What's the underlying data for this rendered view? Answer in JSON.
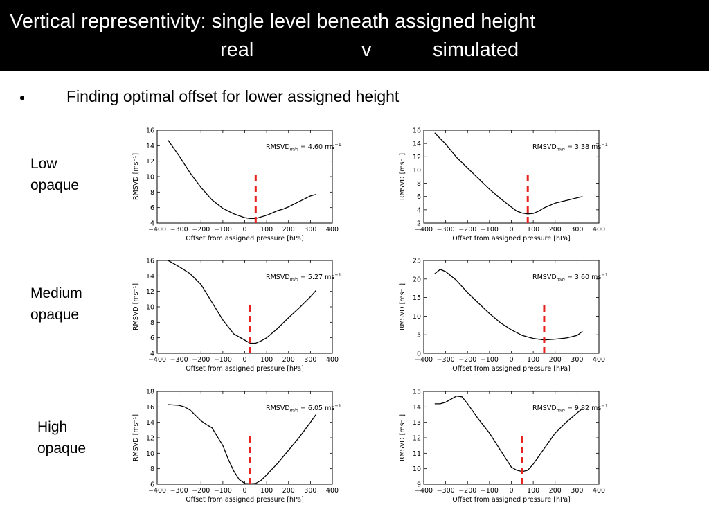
{
  "slide": {
    "title_line1": "Vertical representivity:  single level beneath assigned height",
    "title_line2": [
      "real",
      "v",
      "simulated"
    ],
    "bullet_symbol": "•",
    "bullet_text": "Finding optimal offset for lower assigned height",
    "row_labels": [
      [
        "Low",
        "opaque"
      ],
      [
        "Medium",
        "opaque"
      ],
      [
        "High",
        "opaque"
      ]
    ]
  },
  "chart_data": [
    {
      "type": "line",
      "row": "Low opaque",
      "column": "real",
      "xlabel": "Offset from assigned pressure [hPa]",
      "ylabel": "RMSVD [ms⁻¹]",
      "xlim": [
        -400,
        400
      ],
      "ylim": [
        4,
        16
      ],
      "xticks": [
        -400,
        -300,
        -200,
        -100,
        0,
        100,
        200,
        300,
        400
      ],
      "yticks": [
        4,
        6,
        8,
        10,
        12,
        14,
        16
      ],
      "annotation_label": "RMSVD",
      "annotation_sub": "min",
      "annotation_value": "= 4.60 ms",
      "annotation_sup": "−1",
      "optimal_offset": 50,
      "x": [
        -350,
        -300,
        -250,
        -200,
        -150,
        -100,
        -50,
        0,
        25,
        50,
        75,
        100,
        125,
        150,
        175,
        200,
        250,
        300,
        325
      ],
      "y": [
        14.7,
        12.7,
        10.5,
        8.6,
        7.0,
        5.9,
        5.2,
        4.7,
        4.6,
        4.6,
        4.8,
        5.0,
        5.3,
        5.6,
        5.8,
        6.1,
        6.8,
        7.5,
        7.7
      ]
    },
    {
      "type": "line",
      "row": "Low opaque",
      "column": "simulated",
      "xlabel": "Offset from assigned pressure [hPa]",
      "ylabel": "RMSVD [ms⁻¹]",
      "xlim": [
        -400,
        400
      ],
      "ylim": [
        2,
        16
      ],
      "xticks": [
        -400,
        -300,
        -200,
        -100,
        0,
        100,
        200,
        300,
        400
      ],
      "yticks": [
        2,
        4,
        6,
        8,
        10,
        12,
        14,
        16
      ],
      "annotation_label": "RMSVD",
      "annotation_sub": "min",
      "annotation_value": "= 3.38 ms",
      "annotation_sup": "−1",
      "optimal_offset": 75,
      "x": [
        -350,
        -300,
        -250,
        -200,
        -150,
        -100,
        -50,
        0,
        25,
        50,
        75,
        100,
        125,
        150,
        200,
        250,
        300,
        325
      ],
      "y": [
        15.6,
        13.9,
        11.9,
        10.3,
        8.7,
        7.1,
        5.7,
        4.4,
        3.8,
        3.5,
        3.38,
        3.45,
        3.8,
        4.3,
        5.0,
        5.4,
        5.8,
        6.0
      ]
    },
    {
      "type": "line",
      "row": "Medium opaque",
      "column": "real",
      "xlabel": "Offset from assigned pressure [hPa]",
      "ylabel": "RMSVD [ms⁻¹]",
      "xlim": [
        -400,
        400
      ],
      "ylim": [
        4,
        16
      ],
      "xticks": [
        -400,
        -300,
        -200,
        -100,
        0,
        100,
        200,
        300,
        400
      ],
      "yticks": [
        4,
        6,
        8,
        10,
        12,
        14,
        16
      ],
      "annotation_label": "RMSVD",
      "annotation_sub": "min",
      "annotation_value": "= 5.27 ms",
      "annotation_sup": "−1",
      "optimal_offset": 25,
      "x": [
        -350,
        -300,
        -250,
        -200,
        -150,
        -100,
        -50,
        0,
        25,
        50,
        75,
        100,
        150,
        200,
        250,
        300,
        325
      ],
      "y": [
        16.0,
        15.2,
        14.3,
        12.9,
        10.6,
        8.3,
        6.5,
        5.7,
        5.3,
        5.3,
        5.6,
        6.0,
        7.2,
        8.6,
        9.9,
        11.3,
        12.1
      ]
    },
    {
      "type": "line",
      "row": "Medium opaque",
      "column": "simulated",
      "xlabel": "Offset from assigned pressure [hPa]",
      "ylabel": "RMSVD [ms⁻¹]",
      "xlim": [
        -400,
        400
      ],
      "ylim": [
        0,
        25
      ],
      "xticks": [
        -400,
        -300,
        -200,
        -100,
        0,
        100,
        200,
        300,
        400
      ],
      "yticks": [
        0,
        5,
        10,
        15,
        20,
        25
      ],
      "annotation_label": "RMSVD",
      "annotation_sub": "min",
      "annotation_value": "= 3.60 ms",
      "annotation_sup": "−1",
      "optimal_offset": 150,
      "x": [
        -350,
        -325,
        -300,
        -250,
        -200,
        -150,
        -100,
        -50,
        0,
        50,
        100,
        150,
        200,
        250,
        300,
        325
      ],
      "y": [
        21.4,
        22.6,
        22.0,
        19.6,
        16.3,
        13.5,
        10.7,
        8.2,
        6.3,
        4.8,
        4.0,
        3.6,
        3.8,
        4.1,
        4.8,
        5.9
      ]
    },
    {
      "type": "line",
      "row": "High opaque",
      "column": "real",
      "xlabel": "Offset from assigned pressure [hPa]",
      "ylabel": "RMSVD [ms⁻¹]",
      "xlim": [
        -400,
        400
      ],
      "ylim": [
        6,
        18
      ],
      "xticks": [
        -400,
        -300,
        -200,
        -100,
        0,
        100,
        200,
        300,
        400
      ],
      "yticks": [
        6,
        8,
        10,
        12,
        14,
        16,
        18
      ],
      "annotation_label": "RMSVD",
      "annotation_sub": "min",
      "annotation_value": "= 6.05 ms",
      "annotation_sup": "−1",
      "optimal_offset": 25,
      "x": [
        -350,
        -300,
        -275,
        -250,
        -200,
        -175,
        -150,
        -100,
        -75,
        -50,
        -25,
        0,
        25,
        50,
        75,
        100,
        150,
        200,
        250,
        300,
        325
      ],
      "y": [
        16.3,
        16.2,
        16.0,
        15.6,
        14.2,
        13.7,
        13.3,
        11.0,
        9.2,
        7.7,
        6.6,
        6.1,
        6.05,
        6.1,
        6.5,
        7.2,
        8.7,
        10.4,
        12.1,
        14.0,
        15.0
      ]
    },
    {
      "type": "line",
      "row": "High opaque",
      "column": "simulated",
      "xlabel": "Offset from assigned pressure [hPa]",
      "ylabel": "RMSVD [ms⁻¹]",
      "xlim": [
        -400,
        400
      ],
      "ylim": [
        9,
        15
      ],
      "xticks": [
        -400,
        -300,
        -200,
        -100,
        0,
        100,
        200,
        300,
        400
      ],
      "yticks": [
        9,
        10,
        11,
        12,
        13,
        14,
        15
      ],
      "annotation_label": "RMSVD",
      "annotation_sub": "min",
      "annotation_value": "= 9.82 ms",
      "annotation_sup": "−1",
      "optimal_offset": 50,
      "x": [
        -350,
        -325,
        -300,
        -250,
        -225,
        -200,
        -150,
        -100,
        -50,
        0,
        25,
        50,
        75,
        100,
        150,
        200,
        250,
        300,
        325
      ],
      "y": [
        14.2,
        14.2,
        14.3,
        14.7,
        14.65,
        14.2,
        13.2,
        12.3,
        11.2,
        10.1,
        9.9,
        9.82,
        9.9,
        10.3,
        11.3,
        12.3,
        13.0,
        13.6,
        13.9
      ]
    }
  ]
}
